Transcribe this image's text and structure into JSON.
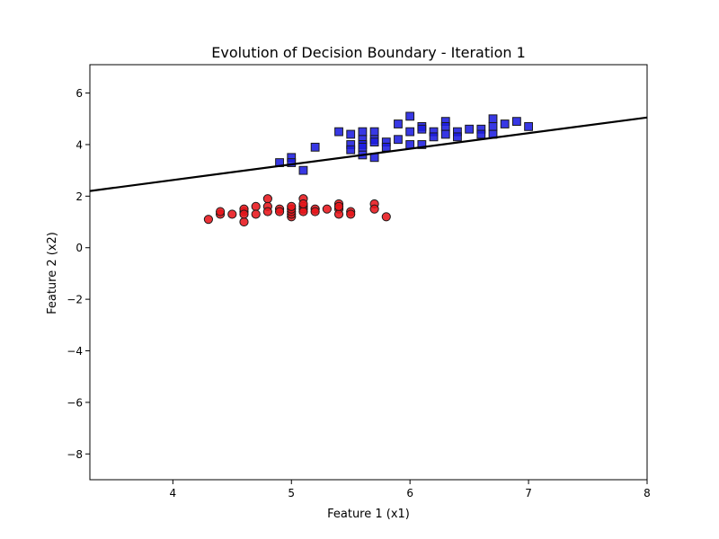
{
  "chart_data": {
    "type": "scatter",
    "title": "Evolution of Decision Boundary - Iteration 1",
    "xlabel": "Feature 1 (x1)",
    "ylabel": "Feature 2 (x2)",
    "xlim": [
      3.3,
      8.0
    ],
    "ylim": [
      -9.0,
      7.1
    ],
    "x_ticks": [
      4,
      5,
      6,
      7,
      8
    ],
    "y_ticks": [
      -8,
      -6,
      -4,
      -2,
      0,
      2,
      4,
      6
    ],
    "grid": false,
    "legend": "none",
    "decision_boundary": {
      "points": [
        [
          3.3,
          2.2
        ],
        [
          8.0,
          5.05
        ]
      ],
      "color": "#000000"
    },
    "series": [
      {
        "marker": "circle",
        "color": "#e8161b",
        "points": [
          [
            4.3,
            1.1
          ],
          [
            4.4,
            1.3
          ],
          [
            4.4,
            1.4
          ],
          [
            4.5,
            1.3
          ],
          [
            4.6,
            1.0
          ],
          [
            4.6,
            1.4
          ],
          [
            4.6,
            1.5
          ],
          [
            4.6,
            1.3
          ],
          [
            4.7,
            1.6
          ],
          [
            4.7,
            1.3
          ],
          [
            4.8,
            1.9
          ],
          [
            4.8,
            1.6
          ],
          [
            4.8,
            1.4
          ],
          [
            4.9,
            1.5
          ],
          [
            4.9,
            1.4
          ],
          [
            5.0,
            1.2
          ],
          [
            5.0,
            1.3
          ],
          [
            5.0,
            1.4
          ],
          [
            5.0,
            1.5
          ],
          [
            5.0,
            1.6
          ],
          [
            5.1,
            1.9
          ],
          [
            5.1,
            1.6
          ],
          [
            5.1,
            1.5
          ],
          [
            5.1,
            1.4
          ],
          [
            5.1,
            1.7
          ],
          [
            5.2,
            1.5
          ],
          [
            5.2,
            1.4
          ],
          [
            5.3,
            1.5
          ],
          [
            5.4,
            1.7
          ],
          [
            5.4,
            1.5
          ],
          [
            5.4,
            1.3
          ],
          [
            5.4,
            1.6
          ],
          [
            5.5,
            1.4
          ],
          [
            5.5,
            1.3
          ],
          [
            5.7,
            1.7
          ],
          [
            5.7,
            1.5
          ],
          [
            5.8,
            1.2
          ]
        ]
      },
      {
        "marker": "square",
        "color": "#1c1ce0",
        "points": [
          [
            4.9,
            3.3
          ],
          [
            5.0,
            3.5
          ],
          [
            5.0,
            3.3
          ],
          [
            5.1,
            3.0
          ],
          [
            5.2,
            3.9
          ],
          [
            5.4,
            4.5
          ],
          [
            5.5,
            4.4
          ],
          [
            5.5,
            4.0
          ],
          [
            5.5,
            3.8
          ],
          [
            5.6,
            4.5
          ],
          [
            5.6,
            4.2
          ],
          [
            5.6,
            4.0
          ],
          [
            5.6,
            3.6
          ],
          [
            5.6,
            3.9
          ],
          [
            5.7,
            4.5
          ],
          [
            5.7,
            4.2
          ],
          [
            5.7,
            4.1
          ],
          [
            5.7,
            3.5
          ],
          [
            5.8,
            4.1
          ],
          [
            5.8,
            3.9
          ],
          [
            5.9,
            4.8
          ],
          [
            5.9,
            4.2
          ],
          [
            6.0,
            5.1
          ],
          [
            6.0,
            4.5
          ],
          [
            6.0,
            4.0
          ],
          [
            6.1,
            4.7
          ],
          [
            6.1,
            4.6
          ],
          [
            6.1,
            4.0
          ],
          [
            6.2,
            4.5
          ],
          [
            6.2,
            4.3
          ],
          [
            6.3,
            4.9
          ],
          [
            6.3,
            4.7
          ],
          [
            6.3,
            4.4
          ],
          [
            6.4,
            4.5
          ],
          [
            6.4,
            4.3
          ],
          [
            6.5,
            4.6
          ],
          [
            6.6,
            4.6
          ],
          [
            6.6,
            4.4
          ],
          [
            6.7,
            5.0
          ],
          [
            6.7,
            4.7
          ],
          [
            6.7,
            4.4
          ],
          [
            6.8,
            4.8
          ],
          [
            6.9,
            4.9
          ],
          [
            7.0,
            4.7
          ]
        ]
      }
    ]
  }
}
